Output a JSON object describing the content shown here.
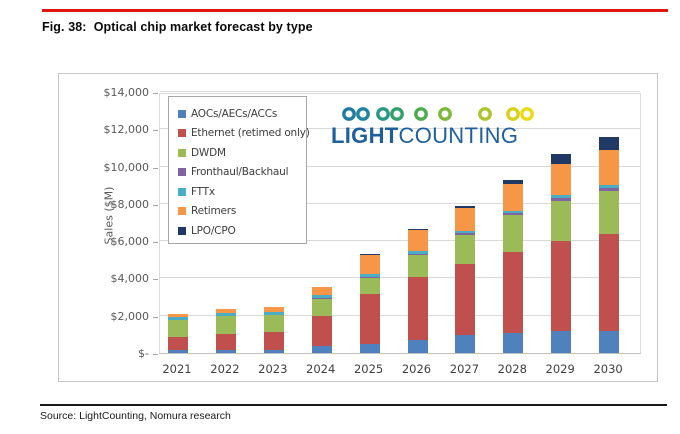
{
  "page": {
    "title": "Fig. 38:  Optical chip market forecast by type",
    "source": "Source: LightCounting, Nomura research",
    "rule_color": "#e0150d"
  },
  "logo": {
    "text_bold": "LIGHT",
    "text_light": "COUNTING",
    "text_color": "#1e5f9e",
    "ring_colors": [
      "#1f7ba4",
      "#1f86a1",
      "#279884",
      "#33a06b",
      "#4caa4f",
      "#7db83a",
      "#abc52b",
      "#d8d11b",
      "#ecda12"
    ]
  },
  "chart_data": {
    "type": "bar",
    "stacked": true,
    "title": "",
    "xlabel": "",
    "ylabel": "Sales ($M)",
    "ylim": [
      0,
      14000
    ],
    "ytick_step": 2000,
    "ytick_labels": [
      "$-",
      "$2,000",
      "$4,000",
      "$6,000",
      "$8,000",
      "$10,000",
      "$12,000",
      "$14,000"
    ],
    "grid": true,
    "legend_position": "upper-left",
    "categories": [
      "2021",
      "2022",
      "2023",
      "2024",
      "2025",
      "2026",
      "2027",
      "2028",
      "2029",
      "2030"
    ],
    "series": [
      {
        "name": "AOCs/AECs/ACCs",
        "color": "#4f81bd",
        "values": [
          150,
          180,
          180,
          350,
          500,
          700,
          950,
          1080,
          1190,
          1200
        ]
      },
      {
        "name": "Ethernet (retimed only)",
        "color": "#c0504d",
        "values": [
          700,
          850,
          950,
          1650,
          2650,
          3400,
          3800,
          4320,
          4810,
          5200
        ]
      },
      {
        "name": "DWDM",
        "color": "#9bbb59",
        "values": [
          900,
          950,
          900,
          900,
          900,
          1150,
          1600,
          2000,
          2150,
          2300
        ]
      },
      {
        "name": "Fronthaul/Backhaul",
        "color": "#8064a2",
        "values": [
          30,
          30,
          30,
          40,
          50,
          50,
          80,
          100,
          150,
          150
        ]
      },
      {
        "name": "FTTx",
        "color": "#4bacc6",
        "values": [
          130,
          120,
          120,
          160,
          150,
          150,
          120,
          120,
          150,
          150
        ]
      },
      {
        "name": "Retimers",
        "color": "#f79646",
        "values": [
          200,
          220,
          270,
          450,
          1000,
          1150,
          1250,
          1430,
          1700,
          1900
        ]
      },
      {
        "name": "LPO/CPO",
        "color": "#1f3864",
        "values": [
          0,
          0,
          0,
          0,
          50,
          50,
          60,
          250,
          500,
          700
        ]
      }
    ],
    "totals": [
      2110,
      2350,
      2450,
      3550,
      5300,
      6650,
      7860,
      9300,
      10650,
      11600
    ]
  }
}
